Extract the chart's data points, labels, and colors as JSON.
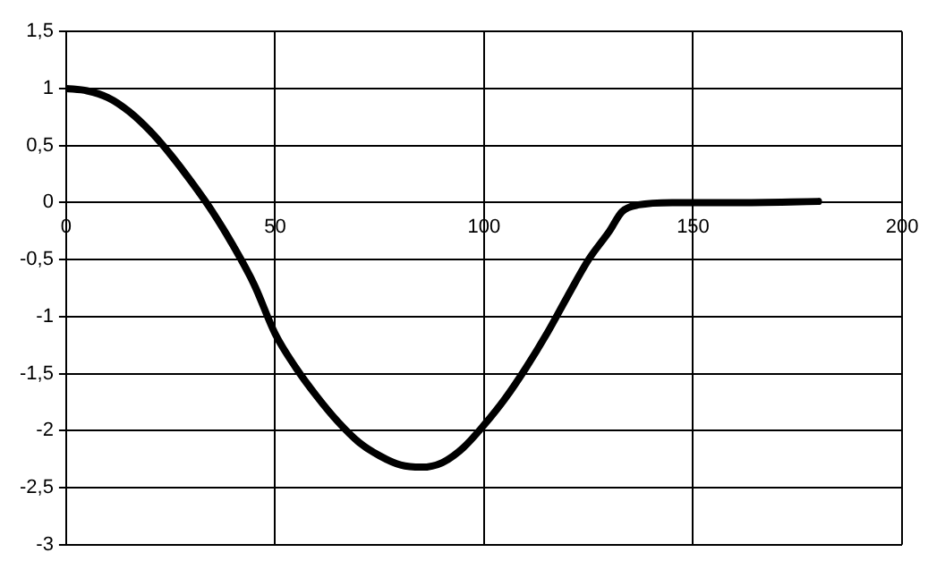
{
  "chart_data": {
    "type": "line",
    "x": [
      0,
      5,
      10,
      15,
      20,
      25,
      30,
      35,
      40,
      45,
      50,
      55,
      60,
      65,
      70,
      75,
      80,
      85,
      90,
      95,
      100,
      105,
      110,
      115,
      120,
      125,
      130,
      133,
      137,
      145,
      160,
      180
    ],
    "series": [
      {
        "color": "#000000",
        "values": [
          1,
          0.98,
          0.92,
          0.8,
          0.63,
          0.42,
          0.18,
          -0.08,
          -0.38,
          -0.72,
          -1.15,
          -1.45,
          -1.7,
          -1.92,
          -2.1,
          -2.22,
          -2.3,
          -2.32,
          -2.28,
          -2.15,
          -1.95,
          -1.72,
          -1.45,
          -1.15,
          -0.82,
          -0.5,
          -0.25,
          -0.08,
          -0.02,
          0,
          0,
          0.01
        ]
      }
    ],
    "xlim": [
      0,
      200
    ],
    "xticks": [
      0,
      50,
      100,
      150,
      200
    ],
    "ylim": [
      -3,
      1.5
    ],
    "yticks": [
      {
        "value": -3,
        "label": "-3"
      },
      {
        "value": -2.5,
        "label": "-2,5"
      },
      {
        "value": -2,
        "label": "-2"
      },
      {
        "value": -1.5,
        "label": "-1,5"
      },
      {
        "value": -1,
        "label": "-1"
      },
      {
        "value": -0.5,
        "label": "-0,5"
      },
      {
        "value": 0,
        "label": "0"
      },
      {
        "value": 0.5,
        "label": "0,5"
      },
      {
        "value": 1,
        "label": "1"
      },
      {
        "value": 1.5,
        "label": "1,5"
      }
    ],
    "grid": true,
    "legend": false,
    "marker": "none",
    "line_style": "solid"
  }
}
